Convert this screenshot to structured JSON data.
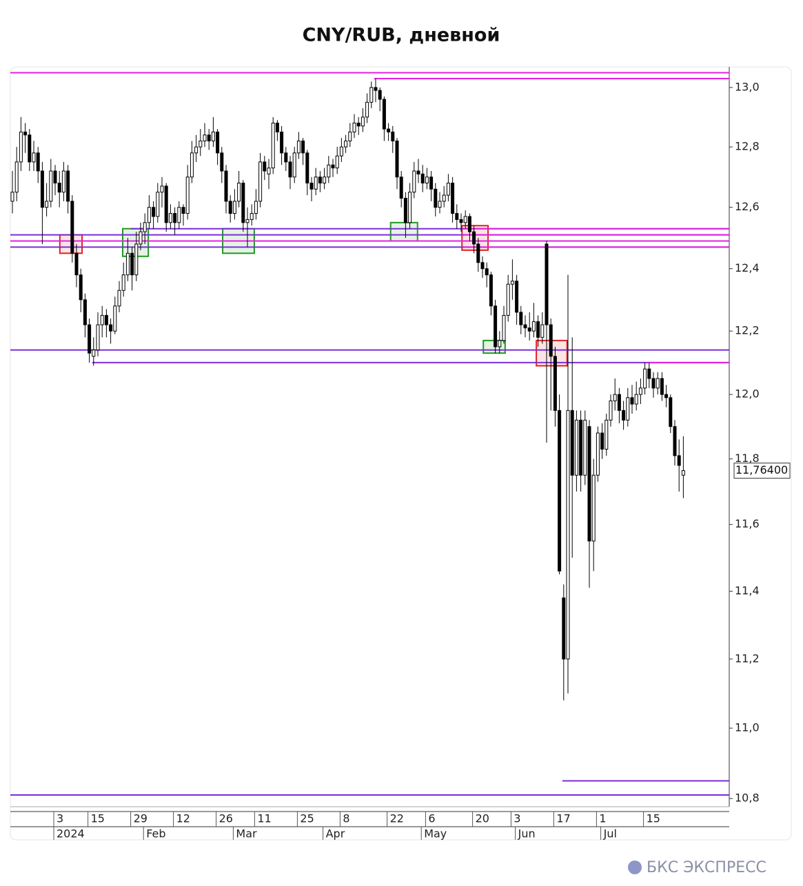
{
  "chart_data": {
    "type": "candlestick",
    "title": "CNY/RUB, дневной",
    "log_scale": true,
    "grid": false,
    "ylim": [
      10.777,
      13.07
    ],
    "yticks": [
      {
        "value": 13.0,
        "label": "13,0"
      },
      {
        "value": 12.8,
        "label": "12,8"
      },
      {
        "value": 12.6,
        "label": "12,6"
      },
      {
        "value": 12.4,
        "label": "12,4"
      },
      {
        "value": 12.2,
        "label": "12,2"
      },
      {
        "value": 12.0,
        "label": "12,0"
      },
      {
        "value": 11.8,
        "label": "11,8"
      },
      {
        "value": 11.6,
        "label": "11,6"
      },
      {
        "value": 11.4,
        "label": "11,4"
      },
      {
        "value": 11.2,
        "label": "11,2"
      },
      {
        "value": 11.0,
        "label": "11,0"
      },
      {
        "value": 10.8,
        "label": "10,8"
      }
    ],
    "categories": [
      null,
      null,
      null,
      null,
      null,
      null,
      null,
      null,
      null,
      null,
      "3",
      null,
      null,
      null,
      null,
      null,
      null,
      null,
      "15",
      null,
      null,
      null,
      null,
      null,
      null,
      null,
      null,
      null,
      "29",
      null,
      null,
      null,
      null,
      null,
      null,
      null,
      null,
      null,
      "12",
      null,
      null,
      null,
      null,
      null,
      null,
      null,
      null,
      null,
      "26",
      null,
      null,
      null,
      null,
      null,
      null,
      null,
      null,
      "11",
      null,
      null,
      null,
      null,
      null,
      null,
      null,
      null,
      null,
      "25",
      null,
      null,
      null,
      null,
      null,
      null,
      null,
      null,
      null,
      "8",
      null,
      null,
      null,
      null,
      null,
      null,
      null,
      null,
      null,
      null,
      "22",
      null,
      null,
      null,
      null,
      null,
      null,
      null,
      null,
      "6",
      null,
      null,
      null,
      null,
      null,
      null,
      null,
      null,
      null,
      null,
      "20",
      null,
      null,
      null,
      null,
      null,
      null,
      null,
      null,
      "3",
      null,
      null,
      null,
      null,
      null,
      null,
      null,
      null,
      null,
      "17",
      null,
      null,
      null,
      null,
      null,
      null,
      null,
      null,
      null,
      "1",
      null,
      null,
      null,
      null,
      null,
      null,
      null,
      null,
      null,
      null,
      "15",
      null,
      null,
      null,
      null,
      null,
      null,
      null,
      null,
      null
    ],
    "month_labels": [
      null,
      null,
      null,
      null,
      null,
      null,
      null,
      null,
      null,
      null,
      "2024",
      null,
      null,
      null,
      null,
      null,
      null,
      null,
      null,
      null,
      null,
      null,
      null,
      null,
      null,
      null,
      null,
      null,
      null,
      null,
      null,
      "Feb",
      null,
      null,
      null,
      null,
      null,
      null,
      null,
      null,
      null,
      null,
      null,
      null,
      null,
      null,
      null,
      null,
      null,
      null,
      null,
      null,
      "Mar",
      null,
      null,
      null,
      null,
      null,
      null,
      null,
      null,
      null,
      null,
      null,
      null,
      null,
      null,
      null,
      null,
      null,
      null,
      null,
      null,
      "Apr",
      null,
      null,
      null,
      null,
      null,
      null,
      null,
      null,
      null,
      null,
      null,
      null,
      null,
      null,
      null,
      null,
      null,
      null,
      null,
      null,
      null,
      null,
      "May",
      null,
      null,
      null,
      null,
      null,
      null,
      null,
      null,
      null,
      null,
      null,
      null,
      null,
      null,
      null,
      null,
      null,
      null,
      null,
      null,
      null,
      "Jun",
      null,
      null,
      null,
      null,
      null,
      null,
      null,
      null,
      null,
      null,
      null,
      null,
      null,
      null,
      null,
      null,
      null,
      null,
      null,
      "Jul",
      null,
      null,
      null,
      null,
      null,
      null,
      null,
      null,
      null,
      null,
      null,
      null,
      null,
      null,
      null,
      null,
      null,
      null,
      null
    ],
    "candles": [
      [
        12.62,
        12.72,
        12.58,
        12.65
      ],
      [
        12.65,
        12.8,
        12.62,
        12.75
      ],
      [
        12.75,
        12.9,
        12.72,
        12.85
      ],
      [
        12.85,
        12.88,
        12.78,
        12.84
      ],
      [
        12.84,
        12.86,
        12.72,
        12.75
      ],
      [
        12.75,
        12.82,
        12.72,
        12.78
      ],
      [
        12.78,
        12.8,
        12.68,
        12.72
      ],
      [
        12.72,
        12.75,
        12.48,
        12.6
      ],
      [
        12.6,
        12.68,
        12.57,
        12.62
      ],
      [
        12.62,
        12.76,
        12.6,
        12.72
      ],
      [
        12.72,
        12.74,
        12.64,
        12.68
      ],
      [
        12.68,
        12.72,
        12.6,
        12.65
      ],
      [
        12.65,
        12.75,
        12.62,
        12.72
      ],
      [
        12.72,
        12.74,
        12.58,
        12.62
      ],
      [
        12.62,
        12.64,
        12.42,
        12.45
      ],
      [
        12.45,
        12.48,
        12.34,
        12.38
      ],
      [
        12.38,
        12.4,
        12.26,
        12.3
      ],
      [
        12.3,
        12.32,
        12.18,
        12.22
      ],
      [
        12.22,
        12.24,
        12.1,
        12.13
      ],
      [
        12.12,
        12.18,
        12.09,
        12.14
      ],
      [
        12.14,
        12.26,
        12.12,
        12.22
      ],
      [
        12.22,
        12.28,
        12.18,
        12.25
      ],
      [
        12.25,
        12.27,
        12.18,
        12.22
      ],
      [
        12.22,
        12.24,
        12.16,
        12.2
      ],
      [
        12.2,
        12.31,
        12.19,
        12.28
      ],
      [
        12.28,
        12.36,
        12.26,
        12.33
      ],
      [
        12.33,
        12.42,
        12.31,
        12.38
      ],
      [
        12.38,
        12.5,
        12.36,
        12.45
      ],
      [
        12.45,
        12.47,
        12.33,
        12.38
      ],
      [
        12.38,
        12.52,
        12.36,
        12.48
      ],
      [
        12.48,
        12.55,
        12.46,
        12.52
      ],
      [
        12.52,
        12.58,
        12.48,
        12.55
      ],
      [
        12.55,
        12.64,
        12.53,
        12.6
      ],
      [
        12.6,
        12.62,
        12.53,
        12.57
      ],
      [
        12.57,
        12.68,
        12.55,
        12.65
      ],
      [
        12.65,
        12.7,
        12.6,
        12.67
      ],
      [
        12.67,
        12.68,
        12.52,
        12.55
      ],
      [
        12.55,
        12.61,
        12.53,
        12.58
      ],
      [
        12.58,
        12.6,
        12.51,
        12.55
      ],
      [
        12.55,
        12.62,
        12.53,
        12.6
      ],
      [
        12.6,
        12.61,
        12.54,
        12.58
      ],
      [
        12.58,
        12.74,
        12.56,
        12.7
      ],
      [
        12.7,
        12.82,
        12.68,
        12.78
      ],
      [
        12.78,
        12.84,
        12.75,
        12.8
      ],
      [
        12.8,
        12.86,
        12.77,
        12.82
      ],
      [
        12.82,
        12.88,
        12.8,
        12.84
      ],
      [
        12.84,
        12.86,
        12.79,
        12.82
      ],
      [
        12.82,
        12.9,
        12.8,
        12.85
      ],
      [
        12.85,
        12.86,
        12.74,
        12.78
      ],
      [
        12.78,
        12.8,
        12.68,
        12.72
      ],
      [
        12.72,
        12.74,
        12.58,
        12.62
      ],
      [
        12.62,
        12.64,
        12.55,
        12.58
      ],
      [
        12.58,
        12.66,
        12.56,
        12.62
      ],
      [
        12.62,
        12.72,
        12.6,
        12.68
      ],
      [
        12.68,
        12.69,
        12.52,
        12.55
      ],
      [
        12.55,
        12.6,
        12.47,
        12.56
      ],
      [
        12.56,
        12.61,
        12.54,
        12.58
      ],
      [
        12.58,
        12.66,
        12.56,
        12.62
      ],
      [
        12.62,
        12.78,
        12.6,
        12.75
      ],
      [
        12.75,
        12.77,
        12.69,
        12.72
      ],
      [
        12.71,
        12.76,
        12.66,
        12.73
      ],
      [
        12.73,
        12.9,
        12.71,
        12.88
      ],
      [
        12.88,
        12.89,
        12.82,
        12.85
      ],
      [
        12.85,
        12.87,
        12.74,
        12.78
      ],
      [
        12.78,
        12.8,
        12.72,
        12.75
      ],
      [
        12.75,
        12.77,
        12.66,
        12.7
      ],
      [
        12.7,
        12.8,
        12.68,
        12.78
      ],
      [
        12.78,
        12.85,
        12.76,
        12.82
      ],
      [
        12.82,
        12.83,
        12.74,
        12.78
      ],
      [
        12.78,
        12.79,
        12.64,
        12.68
      ],
      [
        12.68,
        12.7,
        12.62,
        12.66
      ],
      [
        12.66,
        12.73,
        12.64,
        12.7
      ],
      [
        12.7,
        12.72,
        12.65,
        12.68
      ],
      [
        12.68,
        12.73,
        12.66,
        12.7
      ],
      [
        12.7,
        12.77,
        12.68,
        12.74
      ],
      [
        12.74,
        12.76,
        12.7,
        12.73
      ],
      [
        12.73,
        12.8,
        12.71,
        12.77
      ],
      [
        12.77,
        12.83,
        12.75,
        12.8
      ],
      [
        12.8,
        12.84,
        12.78,
        12.82
      ],
      [
        12.82,
        12.88,
        12.8,
        12.85
      ],
      [
        12.85,
        12.91,
        12.83,
        12.88
      ],
      [
        12.88,
        12.9,
        12.84,
        12.87
      ],
      [
        12.87,
        12.93,
        12.85,
        12.9
      ],
      [
        12.9,
        12.98,
        12.88,
        12.95
      ],
      [
        12.95,
        13.02,
        12.93,
        13.0
      ],
      [
        13.0,
        13.03,
        12.95,
        12.99
      ],
      [
        12.99,
        13.0,
        12.92,
        12.96
      ],
      [
        12.96,
        12.97,
        12.82,
        12.86
      ],
      [
        12.86,
        12.88,
        12.82,
        12.85
      ],
      [
        12.85,
        12.87,
        12.78,
        12.82
      ],
      [
        12.82,
        12.83,
        12.66,
        12.7
      ],
      [
        12.7,
        12.72,
        12.6,
        12.63
      ],
      [
        12.63,
        12.65,
        12.5,
        12.55
      ],
      [
        12.55,
        12.68,
        12.53,
        12.65
      ],
      [
        12.65,
        12.75,
        12.63,
        12.72
      ],
      [
        12.72,
        12.76,
        12.68,
        12.71
      ],
      [
        12.71,
        12.74,
        12.65,
        12.68
      ],
      [
        12.68,
        12.73,
        12.66,
        12.7
      ],
      [
        12.7,
        12.72,
        12.62,
        12.66
      ],
      [
        12.66,
        12.68,
        12.57,
        12.6
      ],
      [
        12.6,
        12.65,
        12.58,
        12.62
      ],
      [
        12.62,
        12.67,
        12.6,
        12.64
      ],
      [
        12.64,
        12.71,
        12.62,
        12.68
      ],
      [
        12.68,
        12.7,
        12.55,
        12.58
      ],
      [
        12.58,
        12.61,
        12.53,
        12.56
      ],
      [
        12.56,
        12.58,
        12.52,
        12.55
      ],
      [
        12.55,
        12.59,
        12.53,
        12.57
      ],
      [
        12.57,
        12.58,
        12.49,
        12.52
      ],
      [
        12.52,
        12.54,
        12.45,
        12.48
      ],
      [
        12.48,
        12.5,
        12.39,
        12.42
      ],
      [
        12.42,
        12.44,
        12.37,
        12.4
      ],
      [
        12.4,
        12.42,
        12.34,
        12.38
      ],
      [
        12.38,
        12.39,
        12.25,
        12.28
      ],
      [
        12.28,
        12.3,
        12.13,
        12.15
      ],
      [
        12.15,
        12.2,
        12.13,
        12.17
      ],
      [
        12.17,
        12.28,
        12.16,
        12.25
      ],
      [
        12.25,
        12.38,
        12.23,
        12.35
      ],
      [
        12.35,
        12.43,
        12.3,
        12.36
      ],
      [
        12.36,
        12.38,
        12.22,
        12.26
      ],
      [
        12.26,
        12.28,
        12.19,
        12.22
      ],
      [
        12.22,
        12.25,
        12.18,
        12.21
      ],
      [
        12.21,
        12.26,
        12.17,
        12.2
      ],
      [
        12.2,
        12.29,
        12.18,
        12.23
      ],
      [
        12.23,
        12.25,
        12.15,
        12.18
      ],
      [
        12.18,
        12.26,
        12.16,
        12.22
      ],
      [
        12.48,
        12.49,
        11.85,
        12.22
      ],
      [
        12.22,
        12.24,
        11.95,
        12.12
      ],
      [
        12.12,
        12.15,
        11.9,
        11.95
      ],
      [
        11.95,
        12.0,
        11.45,
        11.46
      ],
      [
        11.38,
        11.42,
        11.08,
        11.2
      ],
      [
        11.2,
        12.38,
        11.1,
        11.95
      ],
      [
        11.95,
        12.18,
        11.5,
        11.75
      ],
      [
        11.75,
        11.95,
        11.7,
        11.92
      ],
      [
        11.92,
        11.95,
        11.7,
        11.75
      ],
      [
        11.75,
        11.95,
        11.72,
        11.92
      ],
      [
        11.9,
        11.92,
        11.41,
        11.55
      ],
      [
        11.55,
        11.8,
        11.46,
        11.75
      ],
      [
        11.75,
        11.9,
        11.73,
        11.88
      ],
      [
        11.88,
        11.91,
        11.8,
        11.83
      ],
      [
        11.83,
        11.94,
        11.81,
        11.92
      ],
      [
        11.92,
        12.0,
        11.9,
        11.98
      ],
      [
        11.98,
        12.05,
        11.95,
        12.0
      ],
      [
        12.0,
        12.02,
        11.91,
        11.95
      ],
      [
        11.95,
        11.98,
        11.89,
        11.92
      ],
      [
        11.92,
        12.02,
        11.9,
        11.99
      ],
      [
        11.99,
        12.03,
        11.94,
        11.97
      ],
      [
        11.97,
        12.04,
        11.95,
        12.0
      ],
      [
        12.0,
        12.05,
        11.97,
        12.02
      ],
      [
        12.02,
        12.1,
        12.0,
        12.08
      ],
      [
        12.08,
        12.1,
        12.02,
        12.05
      ],
      [
        12.05,
        12.07,
        11.99,
        12.02
      ],
      [
        12.02,
        12.07,
        12.0,
        12.05
      ],
      [
        12.05,
        12.07,
        11.98,
        12.0
      ],
      [
        12.0,
        12.03,
        11.96,
        11.99
      ],
      [
        11.99,
        12.0,
        11.88,
        11.9
      ],
      [
        11.9,
        11.92,
        11.78,
        11.81
      ],
      [
        11.81,
        11.86,
        11.7,
        11.78
      ],
      [
        11.75,
        11.87,
        11.68,
        11.764
      ]
    ],
    "up_color": "#ffffff",
    "down_color": "#000000",
    "last_price": {
      "value": 11.764,
      "label": "11,76400"
    },
    "levels": [
      {
        "value": 13.05,
        "color": "#e020e0",
        "from": 0
      },
      {
        "value": 13.03,
        "color": "#e020e0",
        "from": 85
      },
      {
        "value": 12.53,
        "color": "#7b2bd6",
        "from": 28
      },
      {
        "value": 12.53,
        "color": "#e020e0",
        "from": 106
      },
      {
        "value": 12.51,
        "color": "#7b2bd6",
        "from": 0
      },
      {
        "value": 12.51,
        "color": "#e020e0",
        "from": 106
      },
      {
        "value": 12.49,
        "color": "#e020e0",
        "from": 0
      },
      {
        "value": 12.47,
        "color": "#7b2bd6",
        "from": 0
      },
      {
        "value": 12.47,
        "color": "#e020e0",
        "from": 106
      },
      {
        "value": 12.14,
        "color": "#7b2bd6",
        "from": 0
      },
      {
        "value": 12.1,
        "color": "#7b2bd6",
        "from": 19
      },
      {
        "value": 12.1,
        "color": "#e020e0",
        "from": 149
      },
      {
        "value": 10.85,
        "color": "#7b2bd6",
        "from": 129
      },
      {
        "value": 10.81,
        "color": "#7b2bd6",
        "from": 0
      }
    ],
    "boxes": [
      {
        "color": "#e02020",
        "x": [
          11.1,
          16.3
        ],
        "y": [
          12.51,
          12.45
        ]
      },
      {
        "color": "#1e9a1e",
        "x": [
          25.8,
          31.8
        ],
        "y": [
          12.53,
          12.44
        ]
      },
      {
        "color": "#1e9a1e",
        "x": [
          49.2,
          56.6
        ],
        "y": [
          12.53,
          12.45
        ]
      },
      {
        "color": "#1e9a1e",
        "x": [
          88.5,
          94.8
        ],
        "y": [
          12.55,
          12.49
        ]
      },
      {
        "color": "#e02020",
        "x": [
          105.2,
          111.3
        ],
        "y": [
          12.54,
          12.46
        ]
      },
      {
        "color": "#1e9a1e",
        "x": [
          110.2,
          115.3
        ],
        "y": [
          12.17,
          12.13
        ]
      },
      {
        "color": "#e02020",
        "x": [
          122.6,
          129.8
        ],
        "y": [
          12.17,
          12.09
        ]
      }
    ]
  },
  "logo": "БКС ЭКСПРЕСС"
}
